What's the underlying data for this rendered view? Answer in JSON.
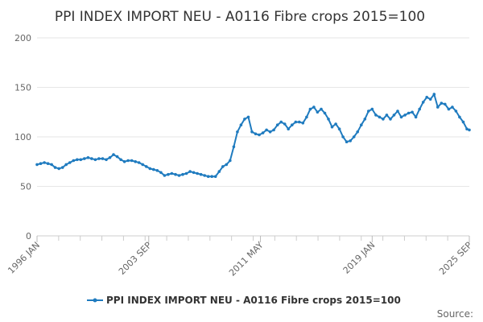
{
  "chart_data": {
    "type": "line",
    "title": "PPI INDEX IMPORT NEU - A0116 Fibre crops 2015=100",
    "xlabel": "",
    "ylabel": "",
    "ylim": [
      0,
      200
    ],
    "yticks": [
      0,
      50,
      100,
      150,
      200
    ],
    "xlim": [
      "1996-01",
      "2025-09"
    ],
    "xticks": [
      "1996 JAN",
      "2003 SEP",
      "2011 MAY",
      "2019 JAN",
      "2025 SEP"
    ],
    "grid": true,
    "legend": "bottom-center",
    "series": [
      {
        "name": "PPI INDEX IMPORT NEU - A0116 Fibre crops 2015=100",
        "color": "#1f7bbf",
        "points": [
          [
            "1996-01",
            72
          ],
          [
            "1996-04",
            73
          ],
          [
            "1996-07",
            74
          ],
          [
            "1996-10",
            73
          ],
          [
            "1997-01",
            72
          ],
          [
            "1997-04",
            69
          ],
          [
            "1997-07",
            68
          ],
          [
            "1997-10",
            69
          ],
          [
            "1998-01",
            72
          ],
          [
            "1998-04",
            74
          ],
          [
            "1998-07",
            76
          ],
          [
            "1998-10",
            77
          ],
          [
            "1999-01",
            77
          ],
          [
            "1999-04",
            78
          ],
          [
            "1999-07",
            79
          ],
          [
            "1999-10",
            78
          ],
          [
            "2000-01",
            77
          ],
          [
            "2000-04",
            78
          ],
          [
            "2000-07",
            78
          ],
          [
            "2000-10",
            77
          ],
          [
            "2001-01",
            79
          ],
          [
            "2001-04",
            82
          ],
          [
            "2001-07",
            80
          ],
          [
            "2001-10",
            77
          ],
          [
            "2002-01",
            75
          ],
          [
            "2002-04",
            76
          ],
          [
            "2002-07",
            76
          ],
          [
            "2002-10",
            75
          ],
          [
            "2003-01",
            74
          ],
          [
            "2003-04",
            72
          ],
          [
            "2003-07",
            70
          ],
          [
            "2003-10",
            68
          ],
          [
            "2004-01",
            67
          ],
          [
            "2004-04",
            66
          ],
          [
            "2004-07",
            64
          ],
          [
            "2004-10",
            61
          ],
          [
            "2005-01",
            62
          ],
          [
            "2005-04",
            63
          ],
          [
            "2005-07",
            62
          ],
          [
            "2005-10",
            61
          ],
          [
            "2006-01",
            62
          ],
          [
            "2006-04",
            63
          ],
          [
            "2006-07",
            65
          ],
          [
            "2006-10",
            64
          ],
          [
            "2007-01",
            63
          ],
          [
            "2007-04",
            62
          ],
          [
            "2007-07",
            61
          ],
          [
            "2007-10",
            60
          ],
          [
            "2008-01",
            60
          ],
          [
            "2008-04",
            60
          ],
          [
            "2008-07",
            65
          ],
          [
            "2008-10",
            70
          ],
          [
            "2009-01",
            72
          ],
          [
            "2009-04",
            76
          ],
          [
            "2009-07",
            90
          ],
          [
            "2009-10",
            105
          ],
          [
            "2010-01",
            112
          ],
          [
            "2010-04",
            118
          ],
          [
            "2010-07",
            120
          ],
          [
            "2010-10",
            105
          ],
          [
            "2011-01",
            103
          ],
          [
            "2011-04",
            102
          ],
          [
            "2011-07",
            104
          ],
          [
            "2011-10",
            107
          ],
          [
            "2012-01",
            105
          ],
          [
            "2012-04",
            107
          ],
          [
            "2012-07",
            112
          ],
          [
            "2012-10",
            115
          ],
          [
            "2013-01",
            113
          ],
          [
            "2013-04",
            108
          ],
          [
            "2013-07",
            112
          ],
          [
            "2013-10",
            115
          ],
          [
            "2014-01",
            115
          ],
          [
            "2014-04",
            114
          ],
          [
            "2014-07",
            120
          ],
          [
            "2014-10",
            128
          ],
          [
            "2015-01",
            130
          ],
          [
            "2015-04",
            125
          ],
          [
            "2015-07",
            128
          ],
          [
            "2015-10",
            124
          ],
          [
            "2016-01",
            118
          ],
          [
            "2016-04",
            110
          ],
          [
            "2016-07",
            113
          ],
          [
            "2016-10",
            108
          ],
          [
            "2017-01",
            100
          ],
          [
            "2017-04",
            95
          ],
          [
            "2017-07",
            96
          ],
          [
            "2017-10",
            100
          ],
          [
            "2018-01",
            105
          ],
          [
            "2018-04",
            112
          ],
          [
            "2018-07",
            118
          ],
          [
            "2018-10",
            126
          ],
          [
            "2019-01",
            128
          ],
          [
            "2019-04",
            122
          ],
          [
            "2019-07",
            120
          ],
          [
            "2019-10",
            118
          ],
          [
            "2020-01",
            122
          ],
          [
            "2020-04",
            118
          ],
          [
            "2020-07",
            122
          ],
          [
            "2020-10",
            126
          ],
          [
            "2021-01",
            120
          ],
          [
            "2021-04",
            122
          ],
          [
            "2021-07",
            124
          ],
          [
            "2021-10",
            125
          ],
          [
            "2022-01",
            120
          ],
          [
            "2022-04",
            128
          ],
          [
            "2022-07",
            135
          ],
          [
            "2022-10",
            140
          ],
          [
            "2023-01",
            138
          ],
          [
            "2023-04",
            143
          ],
          [
            "2023-07",
            130
          ],
          [
            "2023-10",
            134
          ],
          [
            "2024-01",
            133
          ],
          [
            "2024-04",
            128
          ],
          [
            "2024-07",
            130
          ],
          [
            "2024-10",
            126
          ],
          [
            "2025-01",
            120
          ],
          [
            "2025-04",
            115
          ],
          [
            "2025-07",
            108
          ],
          [
            "2025-09",
            107
          ]
        ]
      }
    ]
  },
  "footer": {
    "source_label": "Source:"
  }
}
